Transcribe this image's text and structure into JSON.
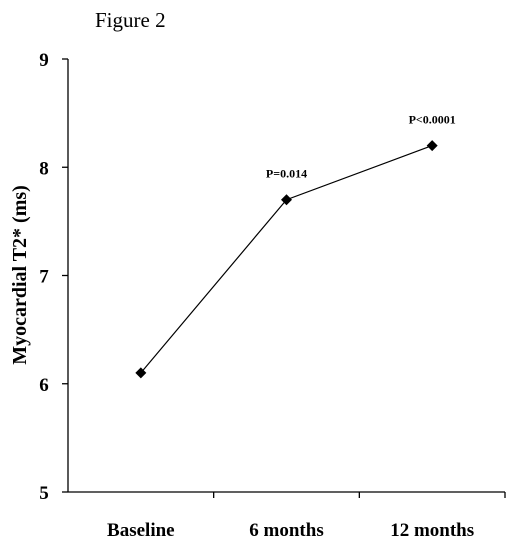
{
  "figure_label": "Figure 2",
  "chart_data": {
    "type": "line",
    "title": "",
    "xlabel": "",
    "ylabel": "Myocardial T2* (ms)",
    "categories": [
      "Baseline",
      "6 months",
      "12 months"
    ],
    "series": [
      {
        "values": [
          6.1,
          7.7,
          8.2
        ]
      }
    ],
    "ylim": [
      5,
      9
    ],
    "yticks": [
      "5",
      "6",
      "7",
      "8",
      "9"
    ],
    "grid": false,
    "legend": "none",
    "marker": "diamond",
    "line_color": "#000000",
    "annotations": [
      {
        "category": "6 months",
        "text": "P=0.014"
      },
      {
        "category": "12 months",
        "text": "P<0.0001"
      }
    ]
  }
}
